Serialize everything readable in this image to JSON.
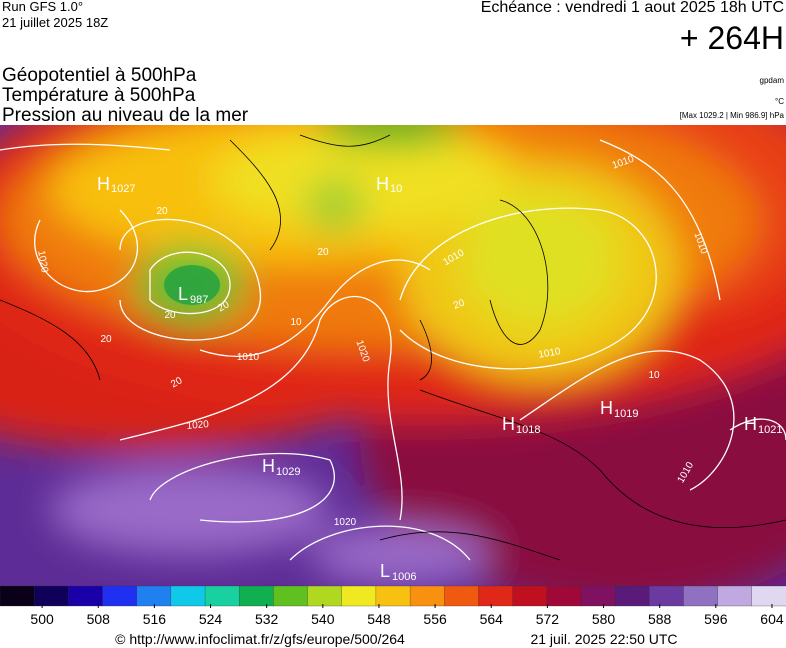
{
  "header": {
    "run": "Run GFS 1.0°",
    "run_date": "21 juillet 2025 18Z",
    "valid": "Echéance : vendredi 1 aout 2025 18h UTC",
    "lead": "+ 264H"
  },
  "titles": [
    "Géopotentiel à 500hPa",
    "Température à 500hPa",
    "Pression au niveau de la mer"
  ],
  "units": [
    "gpdam",
    "°C",
    "[Max 1029.2 | Min 986.9] hPa"
  ],
  "centers": [
    {
      "type": "H",
      "value": "1027"
    },
    {
      "type": "H",
      "value": "10"
    },
    {
      "type": "L",
      "value": "987"
    },
    {
      "type": "H",
      "value": "1029"
    },
    {
      "type": "H",
      "value": "1018"
    },
    {
      "type": "H",
      "value": "1019"
    },
    {
      "type": "H",
      "value": "1021"
    },
    {
      "type": "L",
      "value": "1006"
    }
  ],
  "contour_labels": [
    "1020",
    "1010",
    "1020",
    "1020",
    "1010",
    "1010",
    "1010",
    "1010",
    "1020",
    "1010",
    "20",
    "20",
    "20",
    "20",
    "20",
    "10",
    "10",
    "20",
    "20"
  ],
  "colorbar": {
    "lim": [
      494,
      606
    ],
    "ticks": [
      500,
      508,
      516,
      524,
      532,
      540,
      548,
      556,
      564,
      572,
      580,
      588,
      596,
      604
    ],
    "colors": [
      "#0a0018",
      "#10005a",
      "#1a00a8",
      "#2030f0",
      "#2080f0",
      "#10c8e8",
      "#18d0a0",
      "#10b050",
      "#60c020",
      "#b0d820",
      "#f0e820",
      "#f8c010",
      "#f89010",
      "#f05a10",
      "#e02818",
      "#c01020",
      "#a0083a",
      "#801060",
      "#5a1a7a",
      "#6a3aa0",
      "#9070c0",
      "#c0a8e0",
      "#e0d8f0"
    ]
  },
  "footer": {
    "url": "© http://www.infoclimat.fr/z/gfs/europe/500/264",
    "timestamp": "21 juil. 2025 22:50 UTC"
  }
}
